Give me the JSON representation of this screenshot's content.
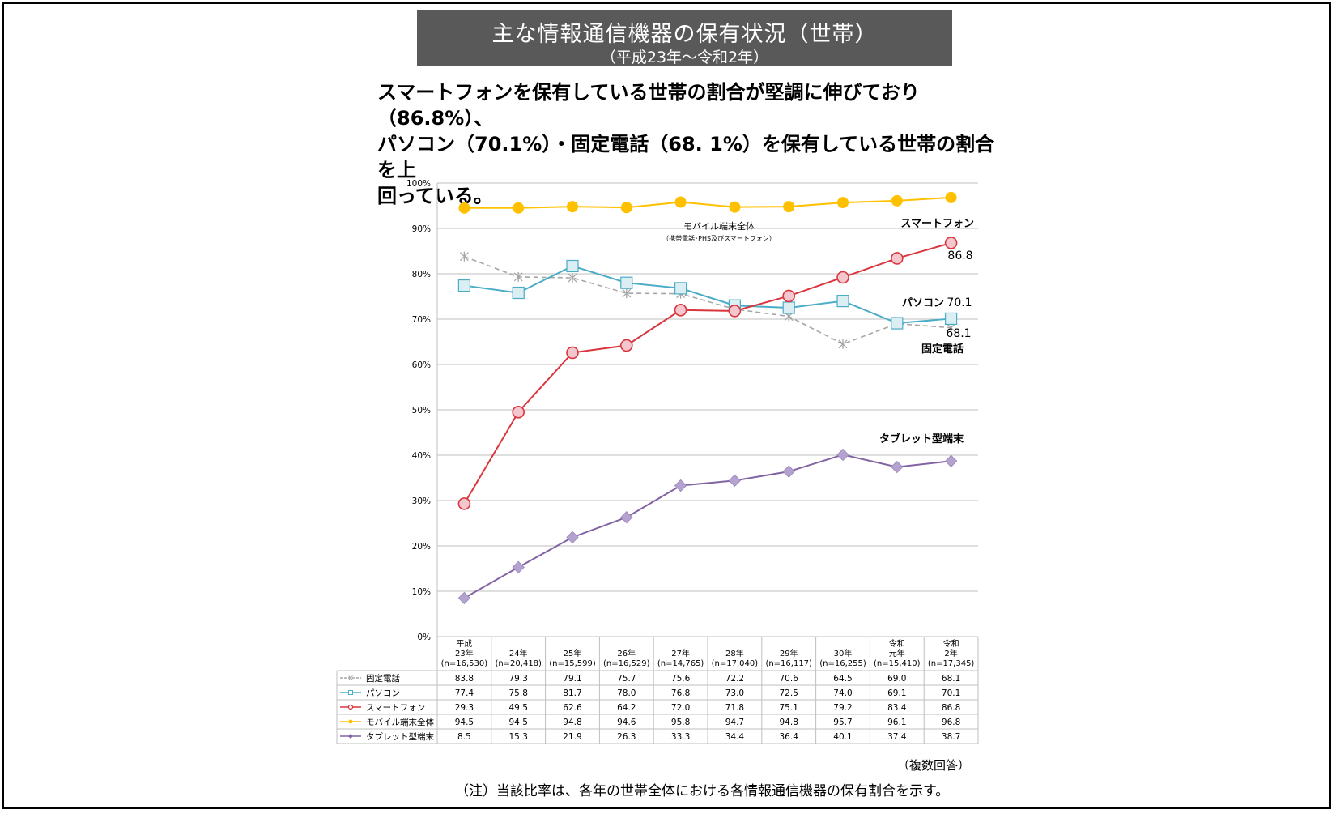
{
  "header": {
    "title": "主な情報通信機器の保有状況（世帯）",
    "subtitle": "（平成23年～令和2年）"
  },
  "headline": {
    "line1": "スマートフォンを保有している世帯の割合が堅調に伸びており（86.8%）、",
    "line2": "パソコン（70.1%）・固定電話（68. 1%）を保有している世帯の割合を上",
    "line3": "回っている。"
  },
  "notes": {
    "multiple": "（複数回答）",
    "footnote": "（注）当該比率は、各年の世帯全体における各情報通信機器の保有割合を示す。"
  },
  "chart_data": {
    "type": "line",
    "y_tick_labels": [
      "0%",
      "10%",
      "20%",
      "30%",
      "40%",
      "50%",
      "60%",
      "70%",
      "80%",
      "90%",
      "100%"
    ],
    "ylim": [
      0,
      100
    ],
    "grid": true,
    "categories": [
      [
        "平成",
        "23年",
        "(n=16,530)"
      ],
      [
        "24年",
        "(n=20,418)"
      ],
      [
        "25年",
        "(n=15,599)"
      ],
      [
        "26年",
        "(n=16,529)"
      ],
      [
        "27年",
        "(n=14,765)"
      ],
      [
        "28年",
        "(n=17,040)"
      ],
      [
        "29年",
        "(n=16,117)"
      ],
      [
        "30年",
        "(n=16,255)"
      ],
      [
        "令和",
        "元年",
        "(n=15,410)"
      ],
      [
        "令和",
        "2年",
        "(n=17,345)"
      ]
    ],
    "series": [
      {
        "name": "固定電話",
        "color": "#a6a6a6",
        "marker": "asterisk",
        "dashed": true,
        "values": [
          83.8,
          79.3,
          79.1,
          75.7,
          75.6,
          72.2,
          70.6,
          64.5,
          69.0,
          68.1
        ],
        "table": [
          "83.8",
          "79.3",
          "79.1",
          "75.7",
          "75.6",
          "72.2",
          "70.6",
          "64.5",
          "69.0",
          "68.1"
        ]
      },
      {
        "name": "パソコン",
        "color": "#4bacc6",
        "marker": "square",
        "dashed": false,
        "values": [
          77.4,
          75.8,
          81.7,
          78.0,
          76.8,
          73.0,
          72.5,
          74.0,
          69.1,
          70.1
        ],
        "table": [
          "77.4",
          "75.8",
          "81.7",
          "78.0",
          "76.8",
          "73.0",
          "72.5",
          "74.0",
          "69.1",
          "70.1"
        ]
      },
      {
        "name": "スマートフォン",
        "color": "#d9363e",
        "marker": "circle",
        "dashed": false,
        "values": [
          29.3,
          49.5,
          62.6,
          64.2,
          72.0,
          71.8,
          75.1,
          79.2,
          83.4,
          86.8
        ],
        "table": [
          "29.3",
          "49.5",
          "62.6",
          "64.2",
          "72.0",
          "71.8",
          "75.1",
          "79.2",
          "83.4",
          "86.8"
        ]
      },
      {
        "name": "モバイル端末全体",
        "color": "#ffc000",
        "marker": "dot",
        "dashed": false,
        "values": [
          94.5,
          94.5,
          94.8,
          94.6,
          95.8,
          94.7,
          94.8,
          95.7,
          96.1,
          96.8
        ],
        "table": [
          "94.5",
          "94.5",
          "94.8",
          "94.6",
          "95.8",
          "94.7",
          "94.8",
          "95.7",
          "96.1",
          "96.8"
        ]
      },
      {
        "name": "タブレット型端末",
        "color": "#8064a2",
        "marker": "diamond",
        "dashed": false,
        "values": [
          8.5,
          15.3,
          21.9,
          26.3,
          33.3,
          34.4,
          36.4,
          40.1,
          37.4,
          38.7
        ],
        "table": [
          "8.5",
          "15.3",
          "21.9",
          "26.3",
          "33.3",
          "34.4",
          "36.4",
          "40.1",
          "37.4",
          "38.7"
        ]
      }
    ],
    "annotations": {
      "mobile_label": "モバイル端末全体",
      "mobile_sub": "（携帯電話･PHS及びスマートフォン）",
      "smartphone_label": "スマートフォン",
      "smartphone_value": "86.8",
      "pc_label": "パソコン",
      "pc_value": "70.1",
      "landline_value": "68.1",
      "landline_label": "固定電話",
      "tablet_label": "タブレット型端末"
    }
  }
}
